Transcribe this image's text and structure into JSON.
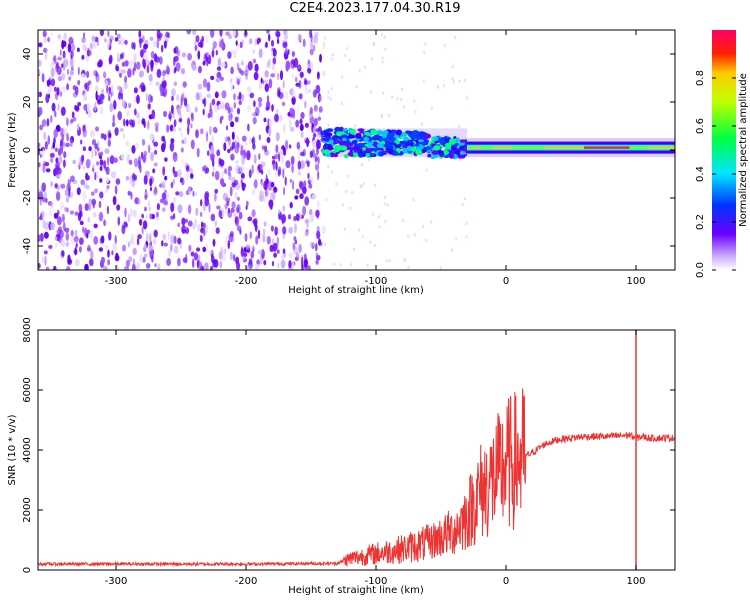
{
  "page": {
    "title": "C2E4.2023.177.04.30.R19"
  },
  "colorbar": {
    "label": "Normalized spectral amplitude",
    "range": [
      0,
      1
    ],
    "ticks": [
      "0.0",
      "0.2",
      "0.4",
      "0.6",
      "0.8"
    ]
  },
  "chart_data": [
    {
      "type": "heatmap",
      "xlabel": "Height of straight line (km)",
      "ylabel": "Frequency (Hz)",
      "xlim": [
        -360,
        130
      ],
      "ylim": [
        -50,
        50
      ],
      "xticks": [
        "-300",
        "-200",
        "-100",
        "0",
        "100"
      ],
      "yticks": [
        "-40",
        "-20",
        "0",
        "20",
        "40"
      ],
      "colormap": [
        "#f5f0ff",
        "#6a00ff",
        "#0044ff",
        "#00ffff",
        "#00ff00",
        "#ffff00",
        "#ff0000",
        "#ff0080"
      ],
      "regions": [
        {
          "description_level": "noise",
          "x": [
            -360,
            -140
          ],
          "freq": [
            -50,
            50
          ],
          "amplitude": 0.15
        },
        {
          "description_level": "signal",
          "x": [
            -140,
            -30
          ],
          "freq_center": 3,
          "freq_halfwidth": 6,
          "amplitude": 0.45
        },
        {
          "description_level": "signal",
          "x": [
            -30,
            130
          ],
          "freq_center": 1,
          "freq_halfwidth": 2,
          "amplitude": 0.9
        }
      ]
    },
    {
      "type": "line",
      "xlabel": "Height of straight line (km)",
      "ylabel": "SNR (10 * v/v)",
      "xlim": [
        -360,
        130
      ],
      "ylim": [
        0,
        8000
      ],
      "xticks": [
        "-300",
        "-200",
        "-100",
        "0",
        "100"
      ],
      "yticks": [
        "0",
        "2000",
        "4000",
        "6000",
        "8000"
      ],
      "series": [
        {
          "color": "#ee3333",
          "x": [
            -360,
            -300,
            -200,
            -130,
            -120,
            -100,
            -80,
            -60,
            -40,
            -30,
            -20,
            -10,
            0,
            10,
            20,
            30,
            40,
            60,
            80,
            95,
            100,
            105,
            110,
            130
          ],
          "y": [
            200,
            200,
            200,
            220,
            380,
            550,
            700,
            900,
            1300,
            1800,
            2600,
            3000,
            3500,
            3700,
            3900,
            4200,
            4350,
            4450,
            4450,
            4500,
            4400,
            4450,
            4400,
            4400
          ]
        }
      ],
      "spikes": [
        {
          "x": 100,
          "y": 8000
        },
        {
          "x": 100,
          "y": 0
        },
        {
          "x": -5,
          "y": 4900
        }
      ]
    }
  ]
}
